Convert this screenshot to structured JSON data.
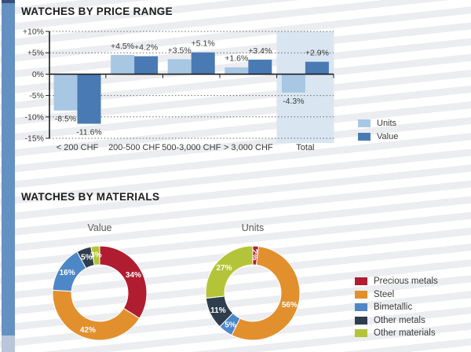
{
  "sections": {
    "price_range_title": "WATCHES BY PRICE RANGE",
    "materials_title": "WATCHES BY MATERIALS"
  },
  "colors": {
    "units": "#a7c7e3",
    "value": "#4a7ab3",
    "total_band": "#d9e6f2",
    "accent_bar": "#6590c2",
    "accent_bar_top": "#35507a",
    "accent_bar_fade": "#b9c5d8",
    "precious_metals": "#b01d30",
    "steel": "#e2902e",
    "bimetallic": "#4d87c7",
    "other_metals": "#2f3e4d",
    "other_materials": "#b4c438",
    "grid": "#6b6b6a",
    "axis": "#1d1d1b",
    "label_text": "#3a3a39",
    "donut_label": "#ffffff"
  },
  "materials_legend": {
    "items": [
      {
        "label": "Precious metals",
        "color_key": "precious_metals"
      },
      {
        "label": "Steel",
        "color_key": "steel"
      },
      {
        "label": "Bimetallic",
        "color_key": "bimetallic"
      },
      {
        "label": "Other metals",
        "color_key": "other_metals"
      },
      {
        "label": "Other materials",
        "color_key": "other_materials"
      }
    ]
  },
  "chart_data": [
    {
      "type": "bar",
      "title": "WATCHES BY PRICE RANGE",
      "unit": "percent change",
      "categories": [
        "< 200 CHF",
        "200-500 CHF",
        "500-3,000 CHF",
        "> 3,000 CHF",
        "Total"
      ],
      "series": [
        {
          "name": "Units",
          "color_key": "units",
          "values": [
            -8.5,
            4.5,
            3.5,
            1.6,
            -4.3
          ],
          "labels": [
            "-8.5%",
            "+4.5%",
            "+3.5%",
            "+1.6%",
            "-4.3%"
          ]
        },
        {
          "name": "Value",
          "color_key": "value",
          "values": [
            -11.6,
            4.2,
            5.1,
            3.4,
            2.9
          ],
          "labels": [
            "-11.6%",
            "+4.2%",
            "+5.1%",
            "+3.4%",
            "+2.9%"
          ]
        }
      ],
      "ylim": [
        -15,
        10
      ],
      "yticks": [
        {
          "v": 10,
          "label": "+10%"
        },
        {
          "v": 5,
          "label": "+5%"
        },
        {
          "v": 0,
          "label": "0%"
        },
        {
          "v": -5,
          "label": "-5%"
        },
        {
          "v": -10,
          "label": "-10%"
        },
        {
          "v": -15,
          "label": "-15%"
        }
      ],
      "grid": "dotted-horizontal",
      "highlight_category": "Total",
      "legend_position": "right"
    },
    {
      "type": "pie",
      "subtype": "donut",
      "title": "Value",
      "start": "top",
      "direction": "clockwise",
      "slices": [
        {
          "label": "Precious metals",
          "value": 34,
          "display": "34%",
          "color_key": "precious_metals"
        },
        {
          "label": "Steel",
          "value": 42,
          "display": "42%",
          "color_key": "steel"
        },
        {
          "label": "Bimetallic",
          "value": 16,
          "display": "16%",
          "color_key": "bimetallic"
        },
        {
          "label": "Other metals",
          "value": 5,
          "display": "5%",
          "color_key": "other_metals"
        },
        {
          "label": "Other materials",
          "value": 3,
          "display": "3%",
          "color_key": "other_materials"
        }
      ]
    },
    {
      "type": "pie",
      "subtype": "donut",
      "title": "Units",
      "start": "top",
      "direction": "clockwise",
      "slices": [
        {
          "label": "Precious metals",
          "value": 2,
          "display": "2%",
          "color_key": "precious_metals",
          "label_rotate": 86
        },
        {
          "label": "Steel",
          "value": 56,
          "display": "56%",
          "color_key": "steel"
        },
        {
          "label": "Bimetallic",
          "value": 5,
          "display": "5%",
          "color_key": "bimetallic"
        },
        {
          "label": "Other metals",
          "value": 11,
          "display": "11%",
          "color_key": "other_metals"
        },
        {
          "label": "Other materials",
          "value": 27,
          "display": "27%",
          "color_key": "other_materials"
        }
      ]
    }
  ]
}
